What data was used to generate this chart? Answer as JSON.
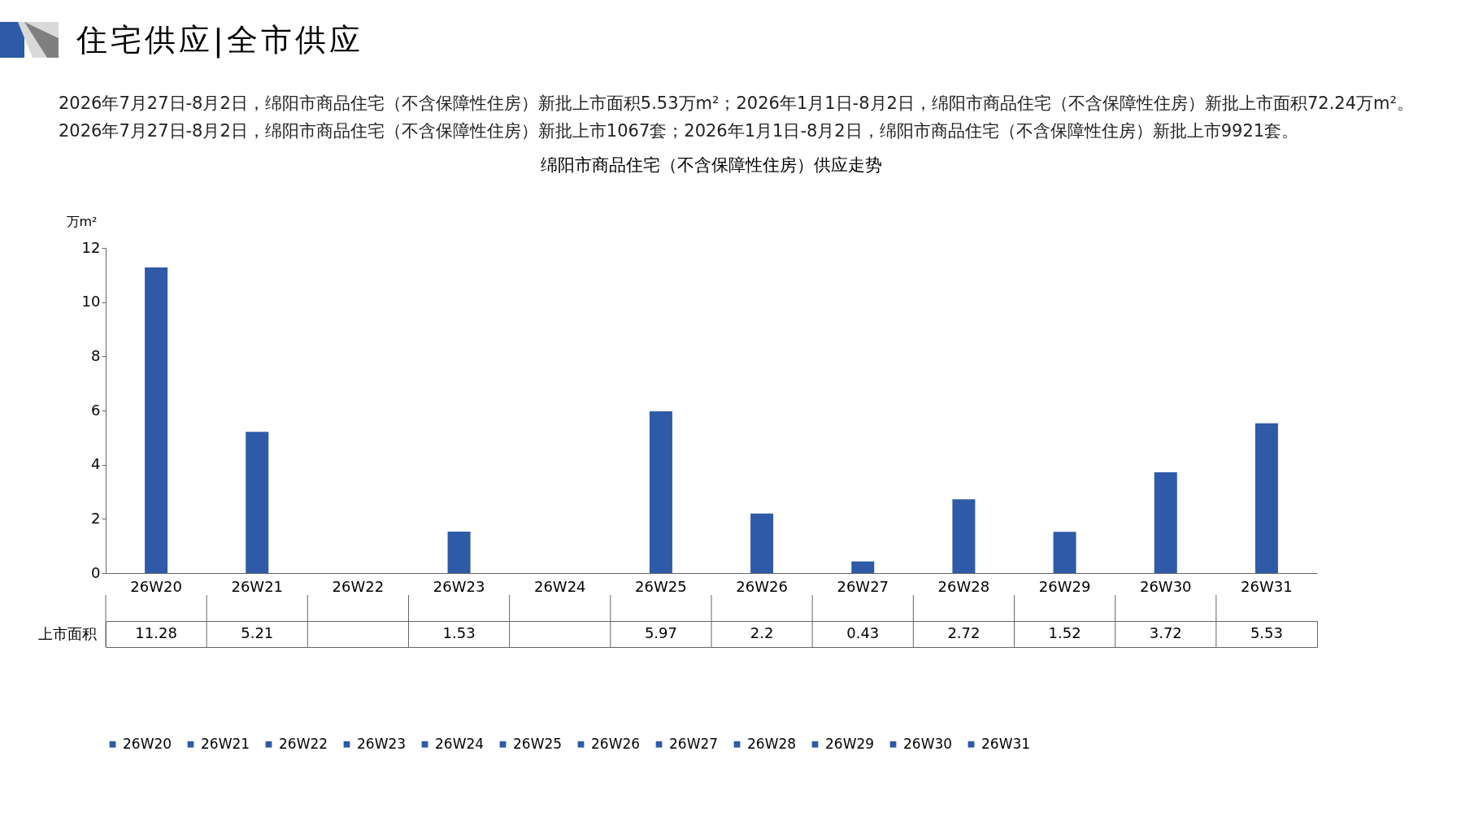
{
  "chart_data": {
    "type": "bar",
    "title": "绵阳市商品住宅（不含保障性住房）供应走势",
    "annotations": [
      "住宅供应|全市供应",
      "2026年7月27日-8月2日，绵阳市商品住宅（不含保障性住房）新批上市面积5.53万m²；2026年1月1日-8月2日，绵阳市商品住宅（不含保障性住房）新批上市面积72.24万m²。2026年7月27日-8月2日，绵阳市商品住宅（不含保障性住房）新批上市1067套；2026年1月1日-8月2日，绵阳市商品住宅（不含保障性住房）新批上市9921套。"
    ],
    "ylabel": "万m²",
    "categories": [
      "26W20",
      "26W21",
      "26W22",
      "26W23",
      "26W24",
      "26W25",
      "26W26",
      "26W27",
      "26W28",
      "26W29",
      "26W30",
      "26W31"
    ],
    "series": [
      {
        "name": "上市面积",
        "colors": [
          "#2e5aa8",
          "#2e5aa8",
          "#2e5aa8",
          "#2e5aa8",
          "#2e5aa8",
          "#2e5aa8",
          "#2e5aa8",
          "#2e5aa8",
          "#2e5aa8",
          "#2e5aa8",
          "#2e5aa8",
          "#2e5aa8"
        ],
        "values": [
          11.28,
          5.21,
          null,
          1.53,
          null,
          5.97,
          2.2,
          0.43,
          2.72,
          1.52,
          3.72,
          5.53
        ]
      }
    ],
    "ylim": [
      0,
      12
    ],
    "yticks": [
      0,
      2,
      4,
      6,
      8,
      10,
      12
    ],
    "data_labels": true,
    "legend": "bottom",
    "grid": false
  }
}
